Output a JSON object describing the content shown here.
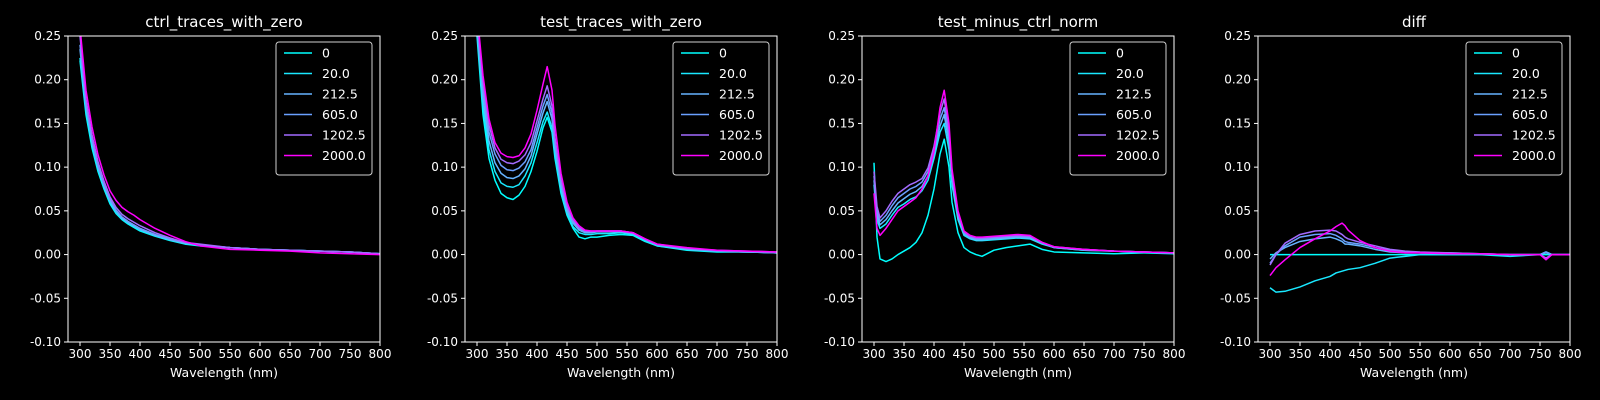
{
  "figure": {
    "background": "#000000",
    "foreground": "#ffffff"
  },
  "legend_labels": [
    "0",
    "20.0",
    "212.5",
    "605.0",
    "1202.5",
    "2000.0"
  ],
  "series_colors": [
    "#00ffff",
    "#19e8ff",
    "#66b3ff",
    "#6aa0ff",
    "#a36bff",
    "#ff00ff"
  ],
  "chart_data": [
    {
      "type": "line",
      "title": "ctrl_traces_with_zero",
      "xlabel": "Wavelength (nm)",
      "ylabel": "",
      "xlim": [
        280,
        800
      ],
      "ylim": [
        -0.1,
        0.25
      ],
      "xticks": [
        300,
        350,
        400,
        450,
        500,
        550,
        600,
        650,
        700,
        750,
        800
      ],
      "yticks": [
        -0.1,
        -0.05,
        0.0,
        0.05,
        0.1,
        0.15,
        0.2,
        0.25
      ],
      "legend_position": "upper right",
      "x": [
        300,
        310,
        320,
        330,
        340,
        350,
        360,
        370,
        380,
        390,
        400,
        425,
        450,
        475,
        500,
        550,
        600,
        650,
        700,
        750,
        800
      ],
      "series": [
        {
          "name": "0",
          "values": [
            0.222,
            0.16,
            0.122,
            0.095,
            0.075,
            0.058,
            0.047,
            0.04,
            0.035,
            0.031,
            0.027,
            0.021,
            0.016,
            0.012,
            0.01,
            0.008,
            0.006,
            0.005,
            0.004,
            0.003,
            0.001
          ]
        },
        {
          "name": "20.0",
          "values": [
            0.225,
            0.165,
            0.126,
            0.098,
            0.077,
            0.06,
            0.048,
            0.041,
            0.036,
            0.032,
            0.028,
            0.022,
            0.017,
            0.013,
            0.011,
            0.008,
            0.006,
            0.005,
            0.004,
            0.003,
            0.001
          ]
        },
        {
          "name": "212.5",
          "values": [
            0.235,
            0.17,
            0.13,
            0.1,
            0.079,
            0.062,
            0.05,
            0.042,
            0.037,
            0.033,
            0.029,
            0.022,
            0.017,
            0.013,
            0.011,
            0.008,
            0.006,
            0.005,
            0.004,
            0.003,
            0.001
          ]
        },
        {
          "name": "605.0",
          "values": [
            0.24,
            0.172,
            0.132,
            0.102,
            0.08,
            0.063,
            0.051,
            0.043,
            0.038,
            0.034,
            0.03,
            0.023,
            0.018,
            0.014,
            0.011,
            0.008,
            0.006,
            0.005,
            0.004,
            0.003,
            0.001
          ]
        },
        {
          "name": "1202.5",
          "values": [
            0.25,
            0.178,
            0.137,
            0.106,
            0.084,
            0.066,
            0.054,
            0.046,
            0.041,
            0.037,
            0.033,
            0.025,
            0.019,
            0.014,
            0.012,
            0.008,
            0.006,
            0.005,
            0.004,
            0.003,
            0.001
          ]
        },
        {
          "name": "2000.0",
          "values": [
            0.26,
            0.188,
            0.146,
            0.114,
            0.091,
            0.073,
            0.062,
            0.054,
            0.049,
            0.045,
            0.04,
            0.03,
            0.022,
            0.015,
            0.01,
            0.006,
            0.005,
            0.004,
            0.002,
            0.001,
            0.0
          ]
        }
      ]
    },
    {
      "type": "line",
      "title": "test_traces_with_zero",
      "xlabel": "Wavelength (nm)",
      "ylabel": "",
      "xlim": [
        280,
        800
      ],
      "ylim": [
        -0.1,
        0.25
      ],
      "xticks": [
        300,
        350,
        400,
        450,
        500,
        550,
        600,
        650,
        700,
        750,
        800
      ],
      "yticks": [
        -0.1,
        -0.05,
        0.0,
        0.05,
        0.1,
        0.15,
        0.2,
        0.25
      ],
      "legend_position": "upper right",
      "x": [
        300,
        310,
        320,
        330,
        340,
        350,
        360,
        370,
        380,
        390,
        400,
        410,
        417,
        425,
        430,
        440,
        450,
        460,
        470,
        480,
        490,
        500,
        520,
        540,
        560,
        580,
        600,
        650,
        700,
        750,
        800
      ],
      "series": [
        {
          "name": "0",
          "values": [
            0.25,
            0.16,
            0.11,
            0.085,
            0.07,
            0.065,
            0.063,
            0.068,
            0.078,
            0.095,
            0.118,
            0.145,
            0.157,
            0.14,
            0.11,
            0.07,
            0.045,
            0.03,
            0.02,
            0.018,
            0.02,
            0.02,
            0.022,
            0.023,
            0.022,
            0.015,
            0.01,
            0.005,
            0.003,
            0.003,
            0.002
          ]
        },
        {
          "name": "20.0",
          "values": [
            0.255,
            0.17,
            0.12,
            0.095,
            0.082,
            0.078,
            0.077,
            0.08,
            0.09,
            0.105,
            0.128,
            0.152,
            0.163,
            0.145,
            0.115,
            0.073,
            0.047,
            0.032,
            0.025,
            0.023,
            0.023,
            0.024,
            0.024,
            0.025,
            0.023,
            0.016,
            0.01,
            0.006,
            0.004,
            0.003,
            0.002
          ]
        },
        {
          "name": "212.5",
          "values": [
            0.26,
            0.18,
            0.13,
            0.105,
            0.093,
            0.088,
            0.087,
            0.09,
            0.098,
            0.113,
            0.138,
            0.162,
            0.175,
            0.155,
            0.122,
            0.078,
            0.05,
            0.036,
            0.028,
            0.025,
            0.025,
            0.026,
            0.026,
            0.026,
            0.024,
            0.017,
            0.011,
            0.006,
            0.004,
            0.003,
            0.002
          ]
        },
        {
          "name": "605.0",
          "values": [
            0.265,
            0.19,
            0.14,
            0.115,
            0.102,
            0.097,
            0.096,
            0.099,
            0.106,
            0.12,
            0.145,
            0.17,
            0.183,
            0.162,
            0.128,
            0.082,
            0.053,
            0.038,
            0.029,
            0.026,
            0.026,
            0.027,
            0.027,
            0.027,
            0.025,
            0.017,
            0.011,
            0.007,
            0.004,
            0.003,
            0.002
          ]
        },
        {
          "name": "1202.5",
          "values": [
            0.27,
            0.198,
            0.148,
            0.122,
            0.109,
            0.105,
            0.104,
            0.107,
            0.114,
            0.128,
            0.153,
            0.178,
            0.193,
            0.17,
            0.134,
            0.086,
            0.056,
            0.04,
            0.031,
            0.027,
            0.027,
            0.027,
            0.027,
            0.027,
            0.025,
            0.018,
            0.012,
            0.007,
            0.005,
            0.004,
            0.003
          ]
        },
        {
          "name": "2000.0",
          "values": [
            0.278,
            0.205,
            0.155,
            0.128,
            0.116,
            0.112,
            0.111,
            0.113,
            0.122,
            0.138,
            0.165,
            0.195,
            0.215,
            0.188,
            0.148,
            0.093,
            0.06,
            0.042,
            0.033,
            0.028,
            0.027,
            0.027,
            0.027,
            0.027,
            0.025,
            0.018,
            0.012,
            0.008,
            0.005,
            0.004,
            0.003
          ]
        }
      ]
    },
    {
      "type": "line",
      "title": "test_minus_ctrl_norm",
      "xlabel": "Wavelength (nm)",
      "ylabel": "",
      "xlim": [
        280,
        800
      ],
      "ylim": [
        -0.1,
        0.25
      ],
      "xticks": [
        300,
        350,
        400,
        450,
        500,
        550,
        600,
        650,
        700,
        750,
        800
      ],
      "yticks": [
        -0.1,
        -0.05,
        0.0,
        0.05,
        0.1,
        0.15,
        0.2,
        0.25
      ],
      "legend_position": "upper right",
      "x": [
        300,
        305,
        310,
        320,
        330,
        340,
        350,
        360,
        370,
        380,
        390,
        400,
        410,
        417,
        425,
        430,
        440,
        450,
        460,
        470,
        480,
        500,
        520,
        540,
        560,
        580,
        600,
        650,
        700,
        750,
        800
      ],
      "series": [
        {
          "name": "0",
          "values": [
            0.105,
            0.02,
            -0.005,
            -0.008,
            -0.005,
            0.0,
            0.004,
            0.008,
            0.014,
            0.025,
            0.045,
            0.075,
            0.115,
            0.132,
            0.1,
            0.06,
            0.025,
            0.008,
            0.003,
            0.0,
            -0.002,
            0.005,
            0.008,
            0.01,
            0.012,
            0.006,
            0.003,
            0.002,
            0.001,
            0.002,
            0.001
          ]
        },
        {
          "name": "20.0",
          "values": [
            0.08,
            0.04,
            0.03,
            0.035,
            0.045,
            0.054,
            0.058,
            0.063,
            0.066,
            0.073,
            0.085,
            0.11,
            0.14,
            0.15,
            0.12,
            0.08,
            0.04,
            0.022,
            0.018,
            0.016,
            0.016,
            0.017,
            0.018,
            0.019,
            0.018,
            0.012,
            0.008,
            0.005,
            0.004,
            0.003,
            0.002
          ]
        },
        {
          "name": "212.5",
          "values": [
            0.085,
            0.045,
            0.034,
            0.04,
            0.05,
            0.059,
            0.064,
            0.069,
            0.072,
            0.078,
            0.09,
            0.115,
            0.147,
            0.16,
            0.128,
            0.085,
            0.043,
            0.024,
            0.019,
            0.017,
            0.017,
            0.018,
            0.019,
            0.02,
            0.019,
            0.013,
            0.008,
            0.005,
            0.004,
            0.003,
            0.002
          ]
        },
        {
          "name": "605.0",
          "values": [
            0.09,
            0.05,
            0.038,
            0.045,
            0.056,
            0.065,
            0.07,
            0.075,
            0.078,
            0.083,
            0.095,
            0.12,
            0.155,
            0.168,
            0.135,
            0.09,
            0.046,
            0.025,
            0.02,
            0.018,
            0.018,
            0.019,
            0.02,
            0.021,
            0.02,
            0.013,
            0.008,
            0.006,
            0.004,
            0.003,
            0.002
          ]
        },
        {
          "name": "1202.5",
          "values": [
            0.095,
            0.055,
            0.042,
            0.05,
            0.061,
            0.07,
            0.075,
            0.08,
            0.083,
            0.087,
            0.099,
            0.124,
            0.162,
            0.178,
            0.142,
            0.094,
            0.048,
            0.026,
            0.021,
            0.019,
            0.019,
            0.02,
            0.021,
            0.022,
            0.021,
            0.014,
            0.009,
            0.006,
            0.004,
            0.003,
            0.002
          ]
        },
        {
          "name": "2000.0",
          "values": [
            0.07,
            0.03,
            0.022,
            0.03,
            0.04,
            0.05,
            0.055,
            0.06,
            0.065,
            0.075,
            0.09,
            0.118,
            0.168,
            0.188,
            0.15,
            0.098,
            0.05,
            0.027,
            0.022,
            0.02,
            0.02,
            0.021,
            0.022,
            0.023,
            0.022,
            0.014,
            0.009,
            0.006,
            0.004,
            0.003,
            0.002
          ]
        }
      ]
    },
    {
      "type": "line",
      "title": "diff",
      "xlabel": "Wavelength (nm)",
      "ylabel": "",
      "xlim": [
        280,
        800
      ],
      "ylim": [
        -0.1,
        0.25
      ],
      "xticks": [
        300,
        350,
        400,
        450,
        500,
        550,
        600,
        650,
        700,
        750,
        800
      ],
      "yticks": [
        -0.1,
        -0.05,
        0.0,
        0.05,
        0.1,
        0.15,
        0.2,
        0.25
      ],
      "legend_position": "upper right",
      "x": [
        300,
        310,
        325,
        350,
        375,
        400,
        410,
        420,
        425,
        430,
        450,
        475,
        500,
        525,
        550,
        600,
        650,
        700,
        750,
        760,
        770,
        800
      ],
      "series": [
        {
          "name": "0",
          "values": [
            0.0,
            0.0,
            0.0,
            0.0,
            0.0,
            0.0,
            0.0,
            0.0,
            0.0,
            0.0,
            0.0,
            0.0,
            0.0,
            0.0,
            0.0,
            0.0,
            0.0,
            0.0,
            0.0,
            0.0,
            0.0,
            0.0
          ]
        },
        {
          "name": "20.0",
          "values": [
            -0.038,
            -0.043,
            -0.042,
            -0.037,
            -0.03,
            -0.025,
            -0.021,
            -0.019,
            -0.018,
            -0.017,
            -0.015,
            -0.01,
            -0.004,
            -0.002,
            0.0,
            0.0,
            0.0,
            -0.002,
            0.0,
            0.003,
            0.0,
            0.0
          ]
        },
        {
          "name": "212.5",
          "values": [
            -0.005,
            0.002,
            0.008,
            0.015,
            0.018,
            0.02,
            0.018,
            0.015,
            0.012,
            0.012,
            0.01,
            0.006,
            0.003,
            0.002,
            0.002,
            0.001,
            0.001,
            0.0,
            0.0,
            0.002,
            0.0,
            0.0
          ]
        },
        {
          "name": "605.0",
          "values": [
            -0.01,
            0.0,
            0.01,
            0.02,
            0.023,
            0.024,
            0.022,
            0.018,
            0.015,
            0.014,
            0.012,
            0.008,
            0.005,
            0.003,
            0.002,
            0.002,
            0.001,
            0.0,
            0.0,
            0.003,
            0.0,
            0.0
          ]
        },
        {
          "name": "1202.5",
          "values": [
            -0.012,
            0.0,
            0.013,
            0.023,
            0.027,
            0.028,
            0.027,
            0.023,
            0.02,
            0.018,
            0.014,
            0.01,
            0.006,
            0.004,
            0.003,
            0.002,
            0.001,
            0.0,
            0.0,
            -0.004,
            0.0,
            0.0
          ]
        },
        {
          "name": "2000.0",
          "values": [
            -0.024,
            -0.015,
            -0.006,
            0.008,
            0.018,
            0.027,
            0.032,
            0.036,
            0.033,
            0.028,
            0.016,
            0.008,
            0.004,
            0.002,
            0.002,
            0.001,
            0.001,
            0.0,
            0.0,
            -0.006,
            0.0,
            0.0
          ]
        }
      ]
    }
  ]
}
